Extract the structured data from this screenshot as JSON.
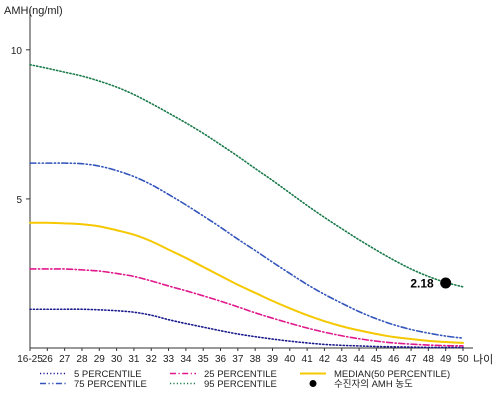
{
  "chart_data": {
    "type": "line",
    "title": "",
    "ylabel": "AMH(ng/ml)",
    "xlabel": "나이",
    "ylim": [
      0,
      11
    ],
    "yticks": [
      5,
      10
    ],
    "x": [
      "16-25",
      "26",
      "27",
      "28",
      "29",
      "30",
      "31",
      "32",
      "33",
      "34",
      "35",
      "36",
      "37",
      "38",
      "39",
      "40",
      "41",
      "42",
      "43",
      "44",
      "45",
      "46",
      "47",
      "48",
      "49",
      "50"
    ],
    "grid": false,
    "legend_position": "bottom",
    "series": [
      {
        "name": "5 PERCENTILE",
        "color": "#1a1a8c",
        "dash": "dotted",
        "values": [
          1.3,
          1.3,
          1.3,
          1.3,
          1.28,
          1.25,
          1.2,
          1.1,
          0.95,
          0.82,
          0.7,
          0.58,
          0.47,
          0.38,
          0.3,
          0.23,
          0.17,
          0.12,
          0.09,
          0.07,
          0.05,
          0.04,
          0.03,
          0.02,
          0.02,
          0.02
        ]
      },
      {
        "name": "25 PERCENTILE",
        "color": "#e0188c",
        "dash": "dashdot",
        "values": [
          2.65,
          2.65,
          2.65,
          2.62,
          2.58,
          2.5,
          2.4,
          2.25,
          2.08,
          1.92,
          1.75,
          1.57,
          1.38,
          1.18,
          1.0,
          0.83,
          0.67,
          0.53,
          0.41,
          0.31,
          0.23,
          0.17,
          0.13,
          0.1,
          0.08,
          0.07
        ]
      },
      {
        "name": "MEDIAN(50 PERCENTILE)",
        "color": "#f5c800",
        "dash": "solid",
        "values": [
          4.2,
          4.2,
          4.18,
          4.15,
          4.08,
          3.95,
          3.8,
          3.58,
          3.3,
          3.02,
          2.72,
          2.42,
          2.12,
          1.85,
          1.58,
          1.33,
          1.1,
          0.9,
          0.73,
          0.59,
          0.47,
          0.37,
          0.3,
          0.24,
          0.2,
          0.17
        ]
      },
      {
        "name": "75 PERCENTILE",
        "color": "#3355bb",
        "dash": "dashdotdot",
        "values": [
          6.2,
          6.2,
          6.2,
          6.18,
          6.1,
          5.95,
          5.75,
          5.48,
          5.15,
          4.8,
          4.43,
          4.05,
          3.65,
          3.27,
          2.88,
          2.5,
          2.13,
          1.8,
          1.5,
          1.22,
          0.98,
          0.78,
          0.62,
          0.5,
          0.4,
          0.33
        ]
      },
      {
        "name": "95 PERCENTILE",
        "color": "#1a7a4a",
        "dash": "dotted",
        "values": [
          9.5,
          9.38,
          9.25,
          9.12,
          8.95,
          8.75,
          8.5,
          8.2,
          7.88,
          7.55,
          7.2,
          6.82,
          6.43,
          6.02,
          5.62,
          5.2,
          4.78,
          4.38,
          4.0,
          3.63,
          3.28,
          2.95,
          2.65,
          2.4,
          2.2,
          2.05
        ]
      }
    ],
    "marker": {
      "name": "수진자의 AMH 농도",
      "x": "49",
      "y": 2.18,
      "label": "2.18",
      "color": "#000000"
    }
  }
}
